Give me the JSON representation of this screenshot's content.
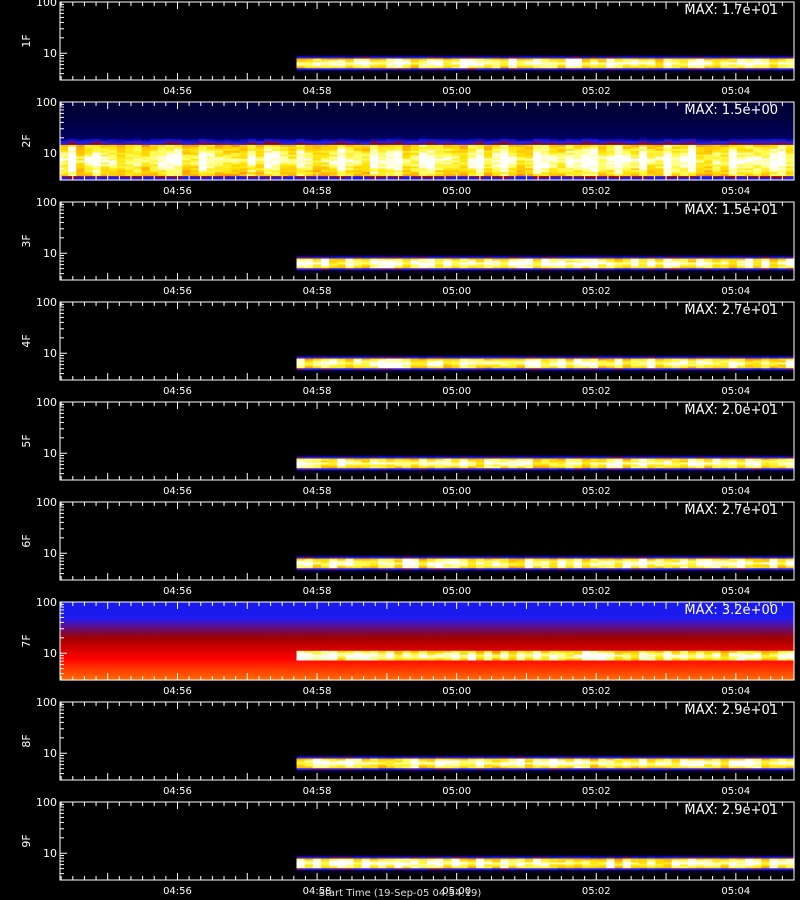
{
  "colors": {
    "background": "#000000",
    "axis": "#ffffff",
    "text": "#ffffff"
  },
  "colormap": [
    "#000000",
    "#00005a",
    "#1e1eff",
    "#a00000",
    "#ff0000",
    "#ff6a00",
    "#ffb000",
    "#ffe000",
    "#ffff60",
    "#ffffff"
  ],
  "footer": {
    "text": "Start Time (19-Sep-05 04:54:19)"
  },
  "chart_data": [
    {
      "type": "heatmap",
      "ylabel": "1F",
      "max_label": "MAX: 1.7e+01",
      "max": 17,
      "xlim": [
        "04:54:19",
        "05:04:50"
      ],
      "ylim": [
        3,
        100
      ],
      "y_scale": "log",
      "x_tick_labels": [
        "04:56",
        "04:58",
        "05:00",
        "05:02",
        "05:04"
      ],
      "y_tick_labels": [
        "10",
        "100"
      ],
      "onset": "04:57:47",
      "band": [
        5,
        8
      ],
      "baseline": 0
    },
    {
      "type": "heatmap",
      "ylabel": "2F",
      "max_label": "MAX: 1.5e+00",
      "max": 1.5,
      "xlim": [
        "04:54:19",
        "05:04:50"
      ],
      "ylim": [
        3,
        100
      ],
      "y_scale": "log",
      "x_tick_labels": [
        "04:56",
        "04:58",
        "05:00",
        "05:02",
        "05:04"
      ],
      "y_tick_labels": [
        "10",
        "100"
      ],
      "onset": "04:54:19",
      "band": [
        3.5,
        15
      ],
      "baseline": 0.12
    },
    {
      "type": "heatmap",
      "ylabel": "3F",
      "max_label": "MAX: 1.5e+01",
      "max": 15,
      "xlim": [
        "04:54:19",
        "05:04:50"
      ],
      "ylim": [
        3,
        100
      ],
      "y_scale": "log",
      "x_tick_labels": [
        "04:56",
        "04:58",
        "05:00",
        "05:02",
        "05:04"
      ],
      "y_tick_labels": [
        "10",
        "100"
      ],
      "onset": "04:57:47",
      "band": [
        5,
        8
      ],
      "baseline": 0
    },
    {
      "type": "heatmap",
      "ylabel": "4F",
      "max_label": "MAX: 2.7e+01",
      "max": 27,
      "xlim": [
        "04:54:19",
        "05:04:50"
      ],
      "ylim": [
        3,
        100
      ],
      "y_scale": "log",
      "x_tick_labels": [
        "04:56",
        "04:58",
        "05:00",
        "05:02",
        "05:04"
      ],
      "y_tick_labels": [
        "10",
        "100"
      ],
      "onset": "04:57:47",
      "band": [
        5,
        8
      ],
      "baseline": 0
    },
    {
      "type": "heatmap",
      "ylabel": "5F",
      "max_label": "MAX: 2.0e+01",
      "max": 20,
      "xlim": [
        "04:54:19",
        "05:04:50"
      ],
      "ylim": [
        3,
        100
      ],
      "y_scale": "log",
      "x_tick_labels": [
        "04:56",
        "04:58",
        "05:00",
        "05:02",
        "05:04"
      ],
      "y_tick_labels": [
        "10",
        "100"
      ],
      "onset": "04:57:47",
      "band": [
        5,
        8
      ],
      "baseline": 0
    },
    {
      "type": "heatmap",
      "ylabel": "6F",
      "max_label": "MAX: 2.7e+01",
      "max": 27,
      "xlim": [
        "04:54:19",
        "05:04:50"
      ],
      "ylim": [
        3,
        100
      ],
      "y_scale": "log",
      "x_tick_labels": [
        "04:56",
        "04:58",
        "05:00",
        "05:02",
        "05:04"
      ],
      "y_tick_labels": [
        "10",
        "100"
      ],
      "onset": "04:57:47",
      "band": [
        5,
        8
      ],
      "baseline": 0
    },
    {
      "type": "heatmap",
      "ylabel": "7F",
      "max_label": "MAX: 3.2e+00",
      "max": 3.2,
      "xlim": [
        "04:54:19",
        "05:04:50"
      ],
      "ylim": [
        3,
        100
      ],
      "y_scale": "log",
      "x_tick_labels": [
        "04:56",
        "04:58",
        "05:00",
        "05:02",
        "05:04"
      ],
      "y_tick_labels": [
        "10",
        "100"
      ],
      "onset": "04:57:47",
      "band": [
        7,
        11
      ],
      "baseline": 0.35
    },
    {
      "type": "heatmap",
      "ylabel": "8F",
      "max_label": "MAX: 2.9e+01",
      "max": 29,
      "xlim": [
        "04:54:19",
        "05:04:50"
      ],
      "ylim": [
        3,
        100
      ],
      "y_scale": "log",
      "x_tick_labels": [
        "04:56",
        "04:58",
        "05:00",
        "05:02",
        "05:04"
      ],
      "y_tick_labels": [
        "10",
        "100"
      ],
      "onset": "04:57:47",
      "band": [
        5,
        8
      ],
      "baseline": 0
    },
    {
      "type": "heatmap",
      "ylabel": "9F",
      "max_label": "MAX: 2.9e+01",
      "max": 29,
      "xlim": [
        "04:54:19",
        "05:04:50"
      ],
      "ylim": [
        3,
        100
      ],
      "y_scale": "log",
      "x_tick_labels": [
        "04:56",
        "04:58",
        "05:00",
        "05:02",
        "05:04"
      ],
      "y_tick_labels": [
        "10",
        "100"
      ],
      "onset": "04:57:47",
      "band": [
        5,
        8
      ],
      "baseline": 0
    }
  ]
}
